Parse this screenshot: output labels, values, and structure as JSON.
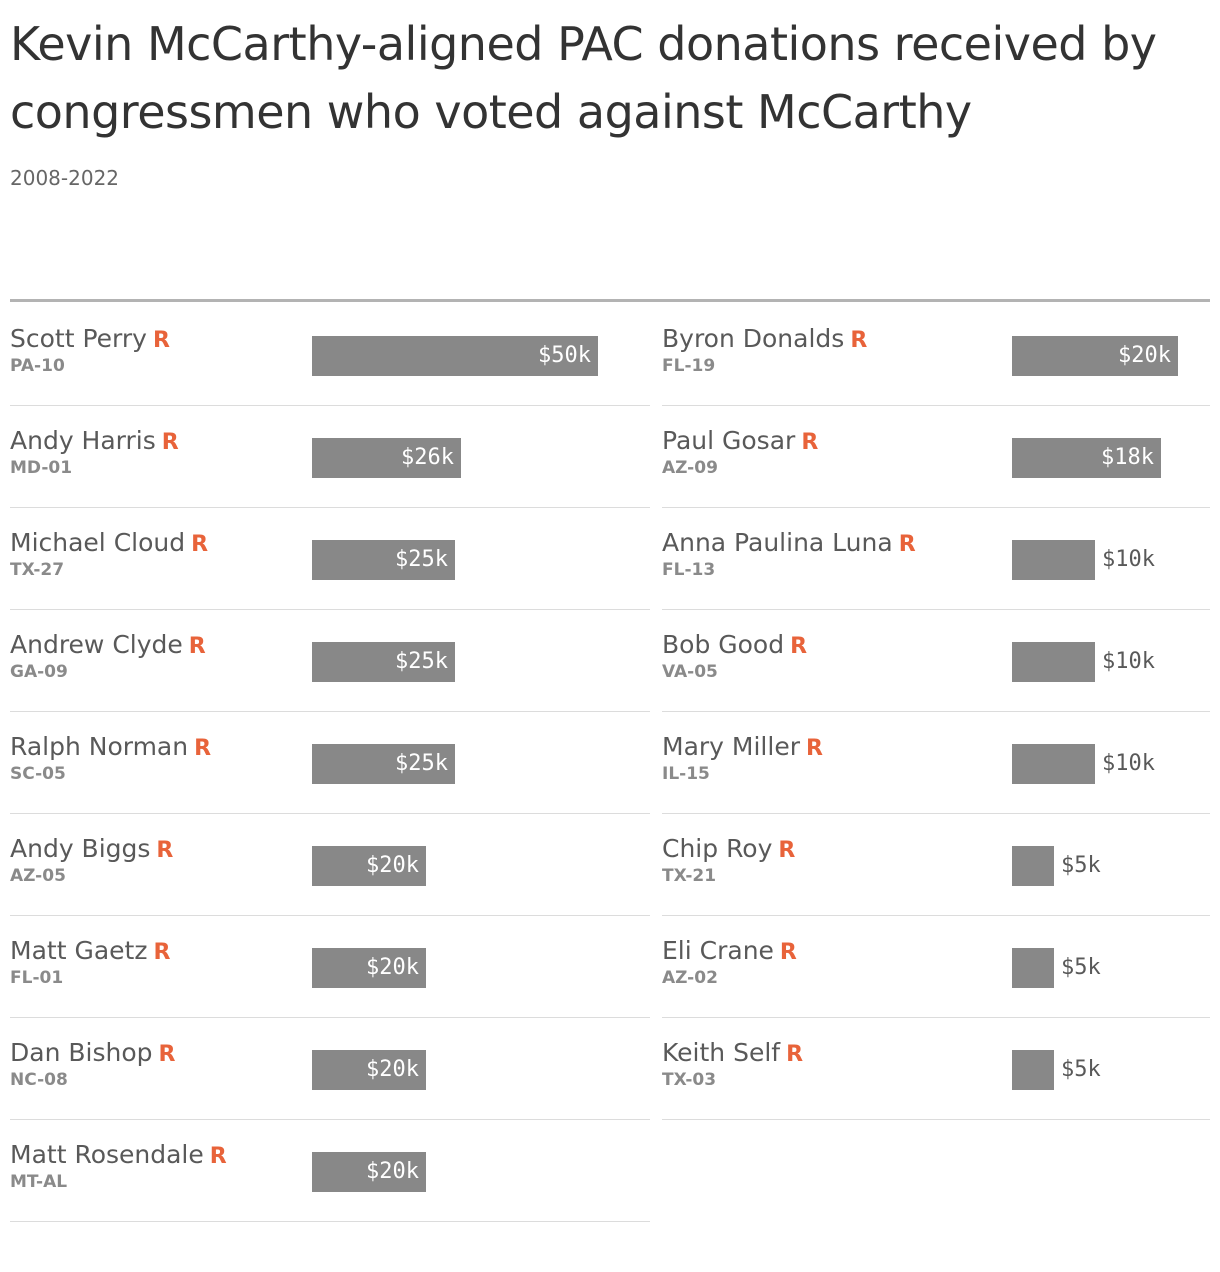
{
  "title": "Kevin McCarthy-aligned PAC donations received by congressmen who voted against McCarthy",
  "subtitle": "2008-2022",
  "colors": {
    "bar": "#888888",
    "party_r": "#e8633a",
    "text": "#333333"
  },
  "chart_data": {
    "type": "bar",
    "title": "Kevin McCarthy-aligned PAC donations received by congressmen who voted against McCarthy",
    "subtitle": "2008-2022",
    "columns": [
      {
        "max": 50,
        "rows": [
          {
            "name": "Scott Perry",
            "party": "R",
            "district": "PA-10",
            "value": 50,
            "label": "$50k"
          },
          {
            "name": "Andy Harris",
            "party": "R",
            "district": "MD-01",
            "value": 26,
            "label": "$26k"
          },
          {
            "name": "Michael Cloud",
            "party": "R",
            "district": "TX-27",
            "value": 25,
            "label": "$25k"
          },
          {
            "name": "Andrew Clyde",
            "party": "R",
            "district": "GA-09",
            "value": 25,
            "label": "$25k"
          },
          {
            "name": "Ralph Norman",
            "party": "R",
            "district": "SC-05",
            "value": 25,
            "label": "$25k"
          },
          {
            "name": "Andy Biggs",
            "party": "R",
            "district": "AZ-05",
            "value": 20,
            "label": "$20k"
          },
          {
            "name": "Matt Gaetz",
            "party": "R",
            "district": "FL-01",
            "value": 20,
            "label": "$20k"
          },
          {
            "name": "Dan Bishop",
            "party": "R",
            "district": "NC-08",
            "value": 20,
            "label": "$20k"
          },
          {
            "name": "Matt Rosendale",
            "party": "R",
            "district": "MT-AL",
            "value": 20,
            "label": "$20k"
          }
        ]
      },
      {
        "max": 20,
        "rows": [
          {
            "name": "Byron Donalds",
            "party": "R",
            "district": "FL-19",
            "value": 20,
            "label": "$20k"
          },
          {
            "name": "Paul Gosar",
            "party": "R",
            "district": "AZ-09",
            "value": 18,
            "label": "$18k"
          },
          {
            "name": "Anna Paulina Luna",
            "party": "R",
            "district": "FL-13",
            "value": 10,
            "label": "$10k"
          },
          {
            "name": "Bob Good",
            "party": "R",
            "district": "VA-05",
            "value": 10,
            "label": "$10k"
          },
          {
            "name": "Mary Miller",
            "party": "R",
            "district": "IL-15",
            "value": 10,
            "label": "$10k"
          },
          {
            "name": "Chip Roy",
            "party": "R",
            "district": "TX-21",
            "value": 5,
            "label": "$5k"
          },
          {
            "name": "Eli Crane",
            "party": "R",
            "district": "AZ-02",
            "value": 5,
            "label": "$5k"
          },
          {
            "name": "Keith Self",
            "party": "R",
            "district": "TX-03",
            "value": 5,
            "label": "$5k"
          }
        ]
      }
    ]
  }
}
